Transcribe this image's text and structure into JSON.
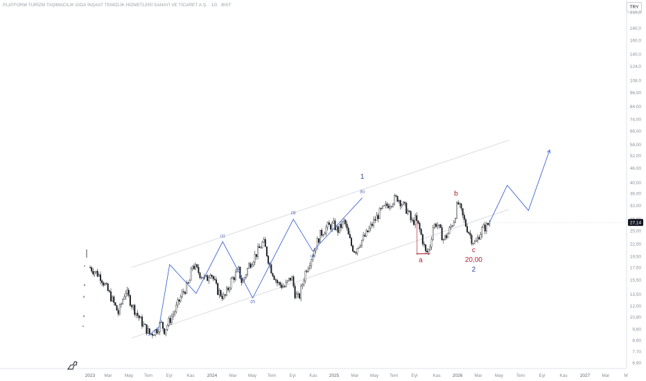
{
  "header": {
    "title": "PLATFORM TURİZM TAŞIMACILIK GIDA İNŞAAT TEMİZLİK HİZMETLERİ SANAYİ VE TİCARET A.Ş. · 1G · BIST",
    "currency": "TRY"
  },
  "chart_data": {
    "type": "candlestick",
    "y_scale": "log",
    "y_ticks": [
      "210,0",
      "180,0",
      "160,0",
      "140,0",
      "124,0",
      "108,0",
      "96,00",
      "84,00",
      "74,00",
      "66,00",
      "58,00",
      "52,00",
      "46,00",
      "40,00",
      "36,00",
      "32,00",
      "28,00",
      "25,00",
      "22,00",
      "19,50",
      "17,50",
      "15,50",
      "13,50",
      "12,00",
      "10,80",
      "9,60",
      "8,60",
      "7,70",
      "6,90"
    ],
    "x_ticks": [
      "2023",
      "Mar",
      "May",
      "Tem",
      "Eyl",
      "Kas",
      "2024",
      "Mar",
      "May",
      "Tem",
      "Eyl",
      "Kas",
      "2025",
      "Mar",
      "May",
      "Tem",
      "Eyl",
      "Kas",
      "2026",
      "Mar",
      "May",
      "Tem",
      "Eyl",
      "Kas",
      "2027",
      "Mar",
      "M"
    ],
    "last_price": "27,14",
    "price_path": [
      [
        0,
        17.5
      ],
      [
        3,
        16.0
      ],
      [
        6,
        13.0
      ],
      [
        8,
        11.2
      ],
      [
        10,
        14.0
      ],
      [
        12,
        12.0
      ],
      [
        15,
        10.0
      ],
      [
        17,
        9.1
      ],
      [
        19,
        9.6
      ],
      [
        20,
        10.2
      ],
      [
        21,
        9.5
      ],
      [
        24,
        11.5
      ],
      [
        26,
        13.5
      ],
      [
        28,
        15.0
      ],
      [
        29,
        18.0
      ],
      [
        31,
        16.5
      ],
      [
        33,
        15.5
      ],
      [
        34,
        17.0
      ],
      [
        36,
        14.0
      ],
      [
        38,
        13.0
      ],
      [
        40,
        15.5
      ],
      [
        42,
        17.0
      ],
      [
        43,
        15.0
      ],
      [
        45,
        18.0
      ],
      [
        47,
        20.0
      ],
      [
        49,
        22.5
      ],
      [
        50,
        20.0
      ],
      [
        51,
        17.5
      ],
      [
        53,
        15.0
      ],
      [
        55,
        14.5
      ],
      [
        57,
        16.0
      ],
      [
        58,
        13.5
      ],
      [
        59,
        12.9
      ],
      [
        61,
        17.0
      ],
      [
        63,
        20.0
      ],
      [
        65,
        24.0
      ],
      [
        67,
        26.0
      ],
      [
        69,
        26.5
      ],
      [
        70,
        25.0
      ],
      [
        72,
        27.5
      ],
      [
        73,
        24.0
      ],
      [
        74,
        21.5
      ],
      [
        75,
        20.5
      ],
      [
        76,
        22.0
      ],
      [
        78,
        24.0
      ],
      [
        80,
        27.0
      ],
      [
        82,
        30.0
      ],
      [
        84,
        32.0
      ],
      [
        86,
        34.0
      ],
      [
        87,
        34.5
      ],
      [
        88,
        33.0
      ],
      [
        90,
        30.0
      ],
      [
        91,
        27.0
      ],
      [
        92,
        28.0
      ],
      [
        93,
        26.0
      ],
      [
        94,
        23.0
      ],
      [
        95,
        20.0
      ],
      [
        96,
        21.0
      ],
      [
        97,
        26.0
      ],
      [
        98,
        27.0
      ],
      [
        99,
        25.0
      ],
      [
        100,
        23.0
      ],
      [
        101,
        24.0
      ],
      [
        103,
        28.0
      ],
      [
        104,
        33.0
      ],
      [
        105,
        30.0
      ],
      [
        106,
        27.0
      ],
      [
        107,
        25.0
      ],
      [
        108,
        23.0
      ],
      [
        109,
        22.0
      ],
      [
        110,
        24.0
      ],
      [
        111,
        25.5
      ],
      [
        112,
        26.0
      ],
      [
        113,
        27.14
      ]
    ],
    "elliott_wave_path": [
      [
        16.5,
        9.0
      ],
      [
        19.5,
        9.8
      ],
      [
        22.5,
        18.0
      ],
      [
        30,
        13.6
      ],
      [
        37.5,
        22.5
      ],
      [
        46,
        13.0
      ],
      [
        57.5,
        28.0
      ],
      [
        63,
        20.5
      ],
      [
        77,
        34.5
      ]
    ],
    "projection_path": [
      [
        113,
        27.14
      ],
      [
        118,
        39.0
      ],
      [
        124,
        30.5
      ],
      [
        130,
        55.0
      ]
    ],
    "wave_labels": [
      {
        "text": "(1)",
        "x": 37.5,
        "y": 23.5
      },
      {
        "text": "(2)",
        "x": 46,
        "y": 12.4
      },
      {
        "text": "(3)",
        "x": 57.5,
        "y": 29.5
      },
      {
        "text": "(4)",
        "x": 63,
        "y": 19.3
      },
      {
        "text": "(5)",
        "x": 77,
        "y": 36.2
      }
    ],
    "big_labels": [
      {
        "text": "1",
        "color": "blue",
        "x": 77,
        "y": 41.5
      },
      {
        "text": "2",
        "color": "blue",
        "x": 108.5,
        "y": 16.8
      },
      {
        "text": "a",
        "color": "red",
        "x": 93.5,
        "y": 18.4
      },
      {
        "text": "b",
        "color": "red",
        "x": 103.5,
        "y": 35.2
      },
      {
        "text": "c",
        "color": "red",
        "x": 108.5,
        "y": 20.3
      },
      {
        "text": "20,00",
        "color": "red",
        "x": 108.5,
        "y": 18.5
      }
    ]
  }
}
